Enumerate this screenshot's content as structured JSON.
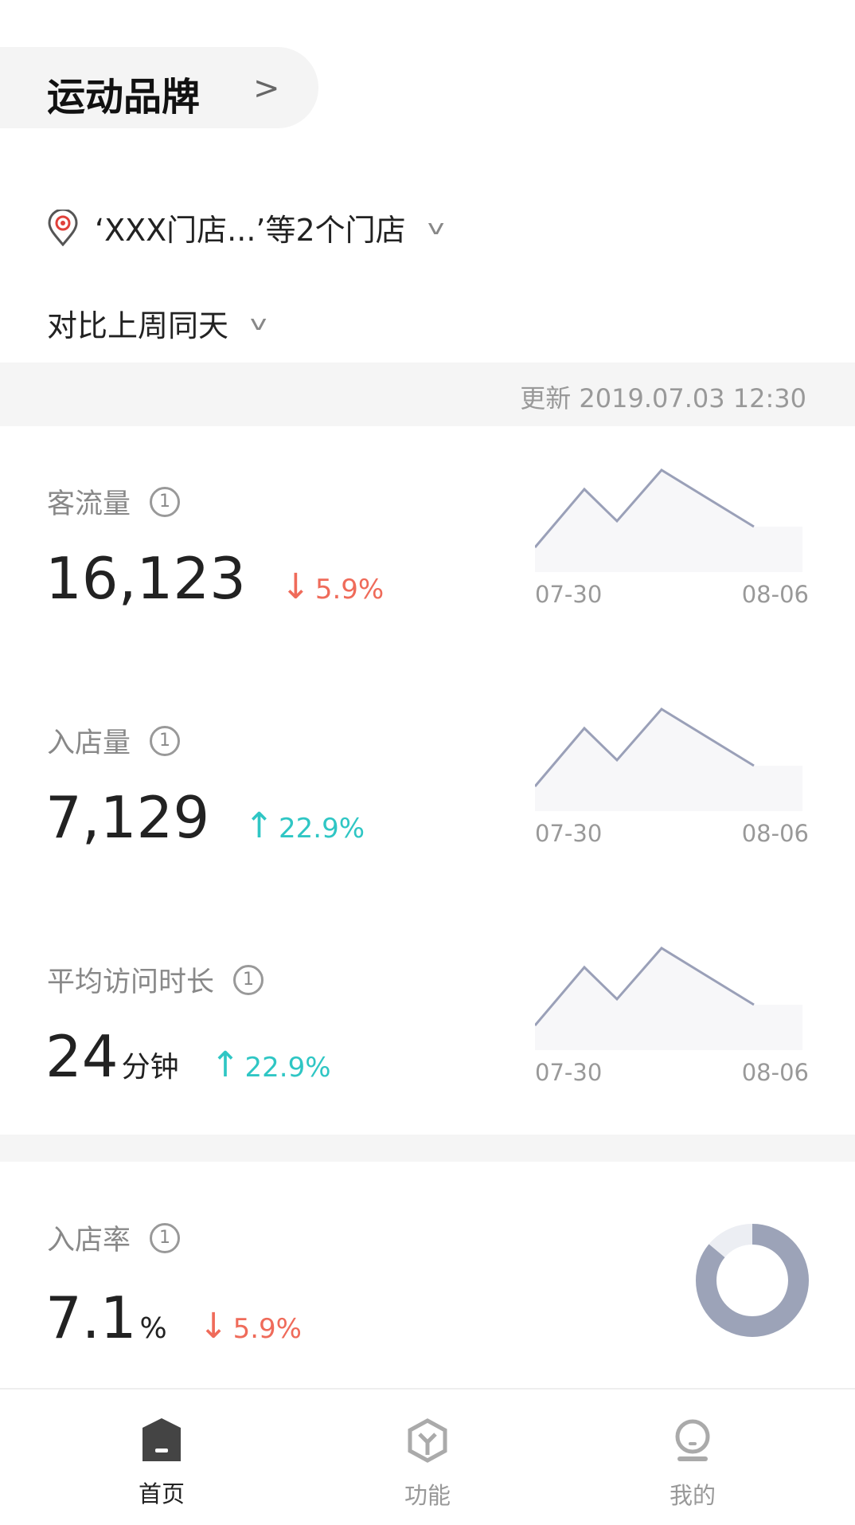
{
  "header": {
    "brand": "运动品牌",
    "brand_chevron": ">"
  },
  "store_selector": {
    "label": "‘XXX门店...’等2个门店",
    "icon": "location-pin-icon"
  },
  "compare_selector": {
    "label": "对比上周同天"
  },
  "update": {
    "text": "更新 2019.07.03 12:30"
  },
  "metrics": [
    {
      "label": "客流量",
      "value": "16,123",
      "unit": "",
      "direction": "down",
      "arrow": "↓",
      "change": "5.9%",
      "dates": [
        "07-30",
        "08-06"
      ]
    },
    {
      "label": "入店量",
      "value": "7,129",
      "unit": "",
      "direction": "up",
      "arrow": "↑",
      "change": "22.9%",
      "dates": [
        "07-30",
        "08-06"
      ]
    },
    {
      "label": "平均访问时长",
      "value": "24",
      "unit": "分钟",
      "direction": "up",
      "arrow": "↑",
      "change": "22.9%",
      "dates": [
        "07-30",
        "08-06"
      ]
    }
  ],
  "rate": {
    "label": "入店率",
    "value": "7.1",
    "unit": "%",
    "direction": "down",
    "arrow": "↓",
    "change": "5.9%",
    "ring_fill_fraction": 0.86
  },
  "colors": {
    "down": "#ef6b5a",
    "up": "#2fc6c4",
    "chart_line": "#9aa0b8",
    "ring": "#9ca3b8",
    "ring_bg": "#eceef3"
  },
  "nav": [
    {
      "label": "首页",
      "icon": "home-icon",
      "active": true
    },
    {
      "label": "功能",
      "icon": "function-cube-icon",
      "active": false
    },
    {
      "label": "我的",
      "icon": "profile-icon",
      "active": false
    }
  ]
}
